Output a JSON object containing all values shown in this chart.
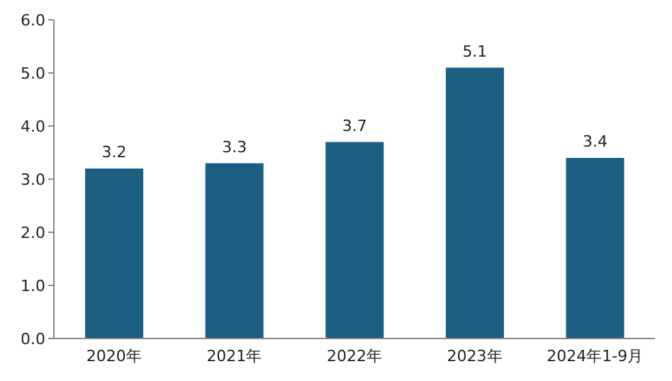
{
  "chart_data": {
    "type": "bar",
    "categories": [
      "2020年",
      "2021年",
      "2022年",
      "2023年",
      "2024年1-9月"
    ],
    "values": [
      3.2,
      3.3,
      3.7,
      5.1,
      3.4
    ],
    "color": "#1b5e82",
    "data_labels": true,
    "ylim": [
      0,
      6
    ],
    "yticks": [
      {
        "value": 0,
        "label": "0.0"
      },
      {
        "value": 1,
        "label": "1.0"
      },
      {
        "value": 2,
        "label": "2.0"
      },
      {
        "value": 3,
        "label": "3.0"
      },
      {
        "value": 4,
        "label": "4.0"
      },
      {
        "value": 5,
        "label": "5.0"
      },
      {
        "value": 6,
        "label": "6.0"
      }
    ],
    "grid": false
  }
}
